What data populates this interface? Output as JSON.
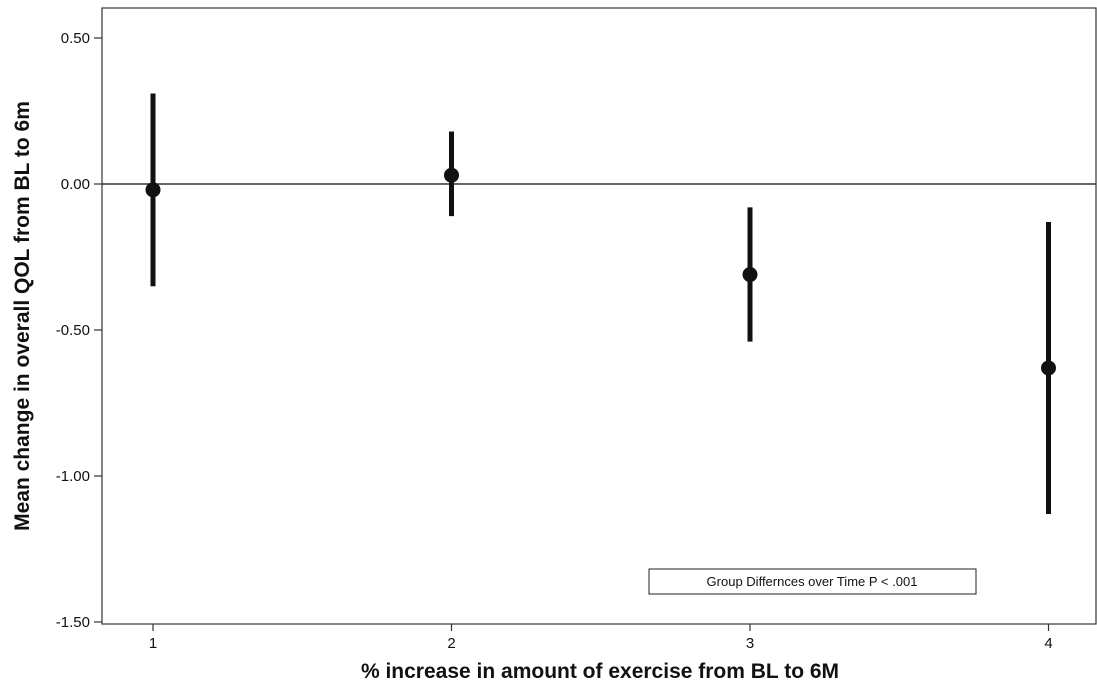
{
  "chart_data": {
    "type": "errorbar",
    "xlabel": "% increase in amount of exercise from BL to 6M",
    "ylabel": "Mean change in overall QOL from BL to 6m",
    "categories": [
      "1",
      "2",
      "3",
      "4"
    ],
    "ylim": [
      -1.5,
      0.6
    ],
    "y_ticks": [
      0.5,
      0.0,
      -0.5,
      -1.0,
      -1.5
    ],
    "y_tick_labels": [
      "0.50",
      "0.00",
      "-0.50",
      "-1.00",
      "-1.50"
    ],
    "reference_line": 0.0,
    "grid": false,
    "points": [
      {
        "x": "1",
        "mean": -0.02,
        "lower": -0.35,
        "upper": 0.31
      },
      {
        "x": "2",
        "mean": 0.03,
        "lower": -0.11,
        "upper": 0.18
      },
      {
        "x": "3",
        "mean": -0.31,
        "lower": -0.54,
        "upper": -0.08
      },
      {
        "x": "4",
        "mean": -0.63,
        "lower": -1.13,
        "upper": -0.13
      }
    ],
    "annotation": "Group Differnces over Time P < .001"
  }
}
